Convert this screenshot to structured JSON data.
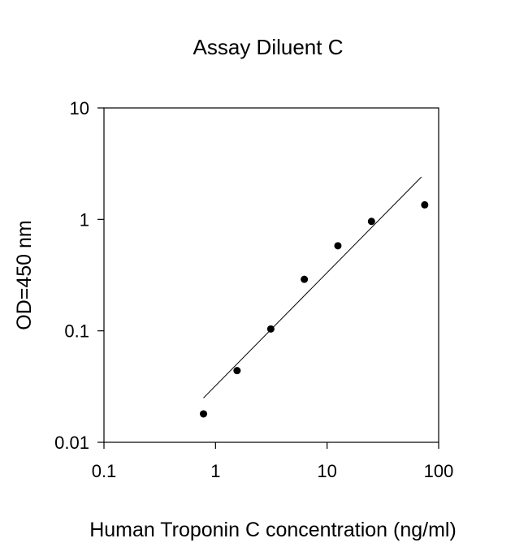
{
  "chart_data": {
    "type": "scatter",
    "title": "Assay Diluent C",
    "xlabel": "Human Troponin C concentration (ng/ml)",
    "ylabel": "OD=450 nm",
    "x_scale": "log",
    "y_scale": "log",
    "xlim": [
      0.1,
      100
    ],
    "ylim": [
      0.01,
      10
    ],
    "x_ticks": [
      {
        "value": 0.1,
        "label": "0.1"
      },
      {
        "value": 1,
        "label": "1"
      },
      {
        "value": 10,
        "label": "10"
      },
      {
        "value": 100,
        "label": "100"
      }
    ],
    "y_ticks": [
      {
        "value": 0.01,
        "label": "0.01"
      },
      {
        "value": 0.1,
        "label": "0.1"
      },
      {
        "value": 1,
        "label": "1"
      },
      {
        "value": 10,
        "label": "10"
      }
    ],
    "grid": false,
    "series": [
      {
        "points": [
          {
            "x": 0.78,
            "y": 0.018
          },
          {
            "x": 1.56,
            "y": 0.044
          },
          {
            "x": 3.13,
            "y": 0.104
          },
          {
            "x": 6.25,
            "y": 0.29
          },
          {
            "x": 12.5,
            "y": 0.58
          },
          {
            "x": 25,
            "y": 0.96
          },
          {
            "x": 75,
            "y": 1.35
          }
        ]
      }
    ],
    "fit_line": {
      "points": [
        {
          "x": 0.78,
          "y": 0.025
        },
        {
          "x": 70,
          "y": 2.4
        }
      ]
    },
    "colors": {
      "marker": "#000000",
      "line": "#000000",
      "axis": "#000000"
    }
  }
}
